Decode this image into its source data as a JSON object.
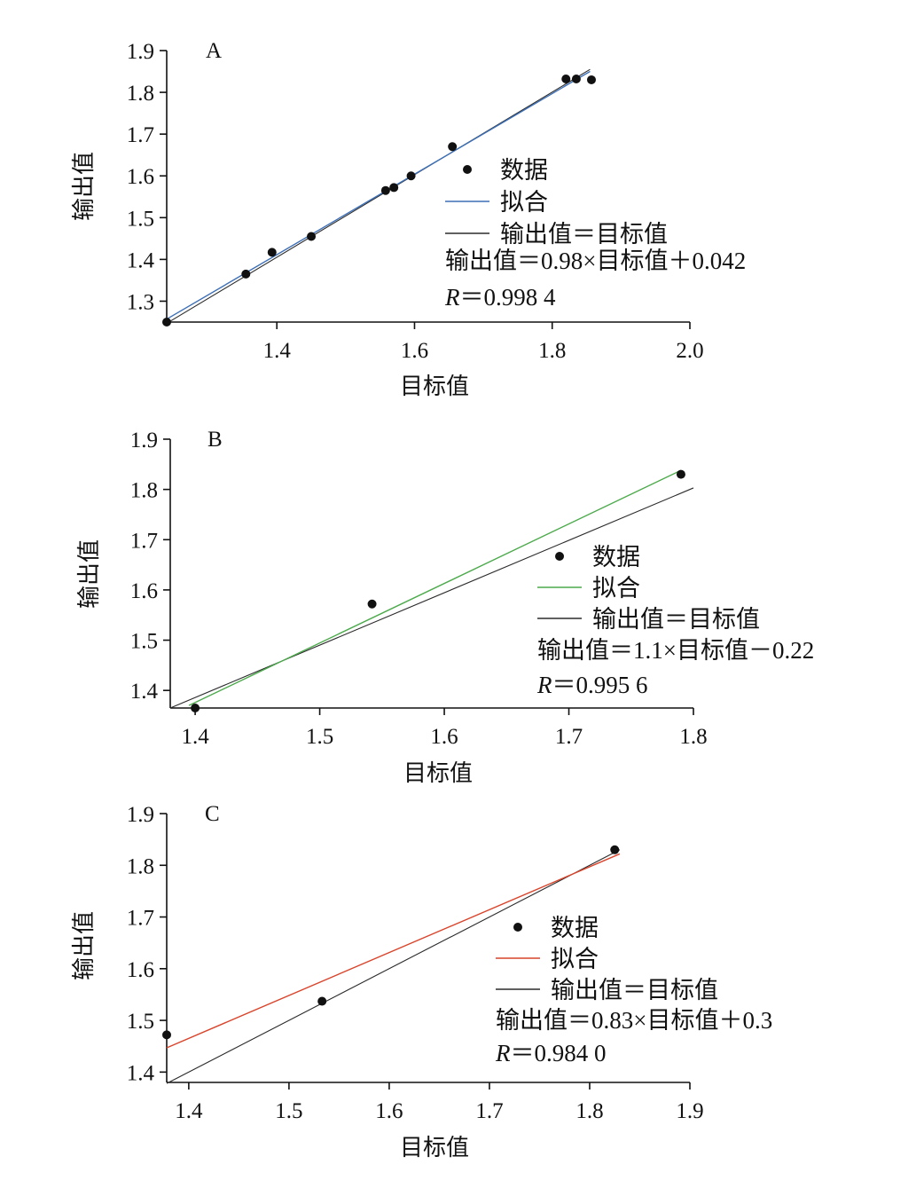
{
  "colors": {
    "data_point": "#111111",
    "identity_line": "#2b2b2b",
    "axis": "#111111"
  },
  "chart_data": [
    {
      "type": "scatter",
      "panel_label": "A",
      "xlabel": "目标值",
      "ylabel": "输出值",
      "xlim": [
        1.24,
        2.0
      ],
      "ylim": [
        1.25,
        1.9
      ],
      "x_ticks": [
        1.4,
        1.6,
        1.8,
        2.0
      ],
      "x_tick_labels": [
        "1.4",
        "1.6",
        "1.8",
        "2.0"
      ],
      "y_ticks": [
        1.3,
        1.4,
        1.5,
        1.6,
        1.7,
        1.8,
        1.9
      ],
      "y_tick_labels": [
        "1.3",
        "1.4",
        "1.5",
        "1.6",
        "1.7",
        "1.8",
        "1.9"
      ],
      "legend_position": "right",
      "series": [
        {
          "name": "数据",
          "kind": "points",
          "color": "#111111",
          "x": [
            1.24,
            1.355,
            1.393,
            1.45,
            1.558,
            1.57,
            1.595,
            1.655,
            1.82,
            1.835,
            1.857
          ],
          "y": [
            1.25,
            1.365,
            1.417,
            1.455,
            1.565,
            1.572,
            1.6,
            1.67,
            1.832,
            1.832,
            1.83
          ]
        },
        {
          "name": "拟合",
          "kind": "line",
          "color": "#3d6fb6",
          "x": [
            1.24,
            1.855
          ],
          "y": [
            1.257,
            1.85
          ]
        },
        {
          "name": "输出值＝目标值",
          "kind": "line",
          "color": "#2b2b2b",
          "x": [
            1.24,
            1.855
          ],
          "y": [
            1.247,
            1.855
          ]
        }
      ],
      "equation": "输出值＝0.98×目标值＋0.042",
      "r_symbol": "R",
      "r_value": "＝0.998 4"
    },
    {
      "type": "scatter",
      "panel_label": "B",
      "xlabel": "目标值",
      "ylabel": "输出值",
      "xlim": [
        1.38,
        1.8
      ],
      "ylim": [
        1.365,
        1.9
      ],
      "x_ticks": [
        1.4,
        1.5,
        1.6,
        1.7,
        1.8
      ],
      "x_tick_labels": [
        "1.4",
        "1.5",
        "1.6",
        "1.7",
        "1.8"
      ],
      "y_ticks": [
        1.4,
        1.5,
        1.6,
        1.7,
        1.8,
        1.9
      ],
      "y_tick_labels": [
        "1.4",
        "1.5",
        "1.6",
        "1.7",
        "1.8",
        "1.9"
      ],
      "legend_position": "right",
      "series": [
        {
          "name": "数据",
          "kind": "points",
          "color": "#111111",
          "x": [
            1.4,
            1.542,
            1.79
          ],
          "y": [
            1.365,
            1.572,
            1.83
          ]
        },
        {
          "name": "拟合",
          "kind": "line",
          "color": "#4caa4c",
          "x": [
            1.395,
            1.79
          ],
          "y": [
            1.37,
            1.838
          ]
        },
        {
          "name": "输出值＝目标值",
          "kind": "line",
          "color": "#2b2b2b",
          "x": [
            1.38,
            1.8
          ],
          "y": [
            1.365,
            1.803
          ]
        }
      ],
      "equation": "输出值＝1.1×目标值－0.22",
      "r_symbol": "R",
      "r_value": "＝0.995 6"
    },
    {
      "type": "scatter",
      "panel_label": "C",
      "xlabel": "目标值",
      "ylabel": "输出值",
      "xlim": [
        1.378,
        1.9
      ],
      "ylim": [
        1.38,
        1.9
      ],
      "x_ticks": [
        1.4,
        1.5,
        1.6,
        1.7,
        1.8,
        1.9
      ],
      "x_tick_labels": [
        "1.4",
        "1.5",
        "1.6",
        "1.7",
        "1.8",
        "1.9"
      ],
      "y_ticks": [
        1.4,
        1.5,
        1.6,
        1.7,
        1.8,
        1.9
      ],
      "y_tick_labels": [
        "1.4",
        "1.5",
        "1.6",
        "1.7",
        "1.8",
        "1.9"
      ],
      "legend_position": "right",
      "series": [
        {
          "name": "数据",
          "kind": "points",
          "color": "#111111",
          "x": [
            1.378,
            1.533,
            1.825
          ],
          "y": [
            1.472,
            1.537,
            1.83
          ]
        },
        {
          "name": "拟合",
          "kind": "line",
          "color": "#d9442b",
          "x": [
            1.378,
            1.83
          ],
          "y": [
            1.447,
            1.822
          ]
        },
        {
          "name": "输出值＝目标值",
          "kind": "line",
          "color": "#2b2b2b",
          "x": [
            1.378,
            1.83
          ],
          "y": [
            1.378,
            1.83
          ]
        }
      ],
      "equation": "输出值＝0.83×目标值＋0.3",
      "r_symbol": "R",
      "r_value": "＝0.984 0"
    }
  ]
}
